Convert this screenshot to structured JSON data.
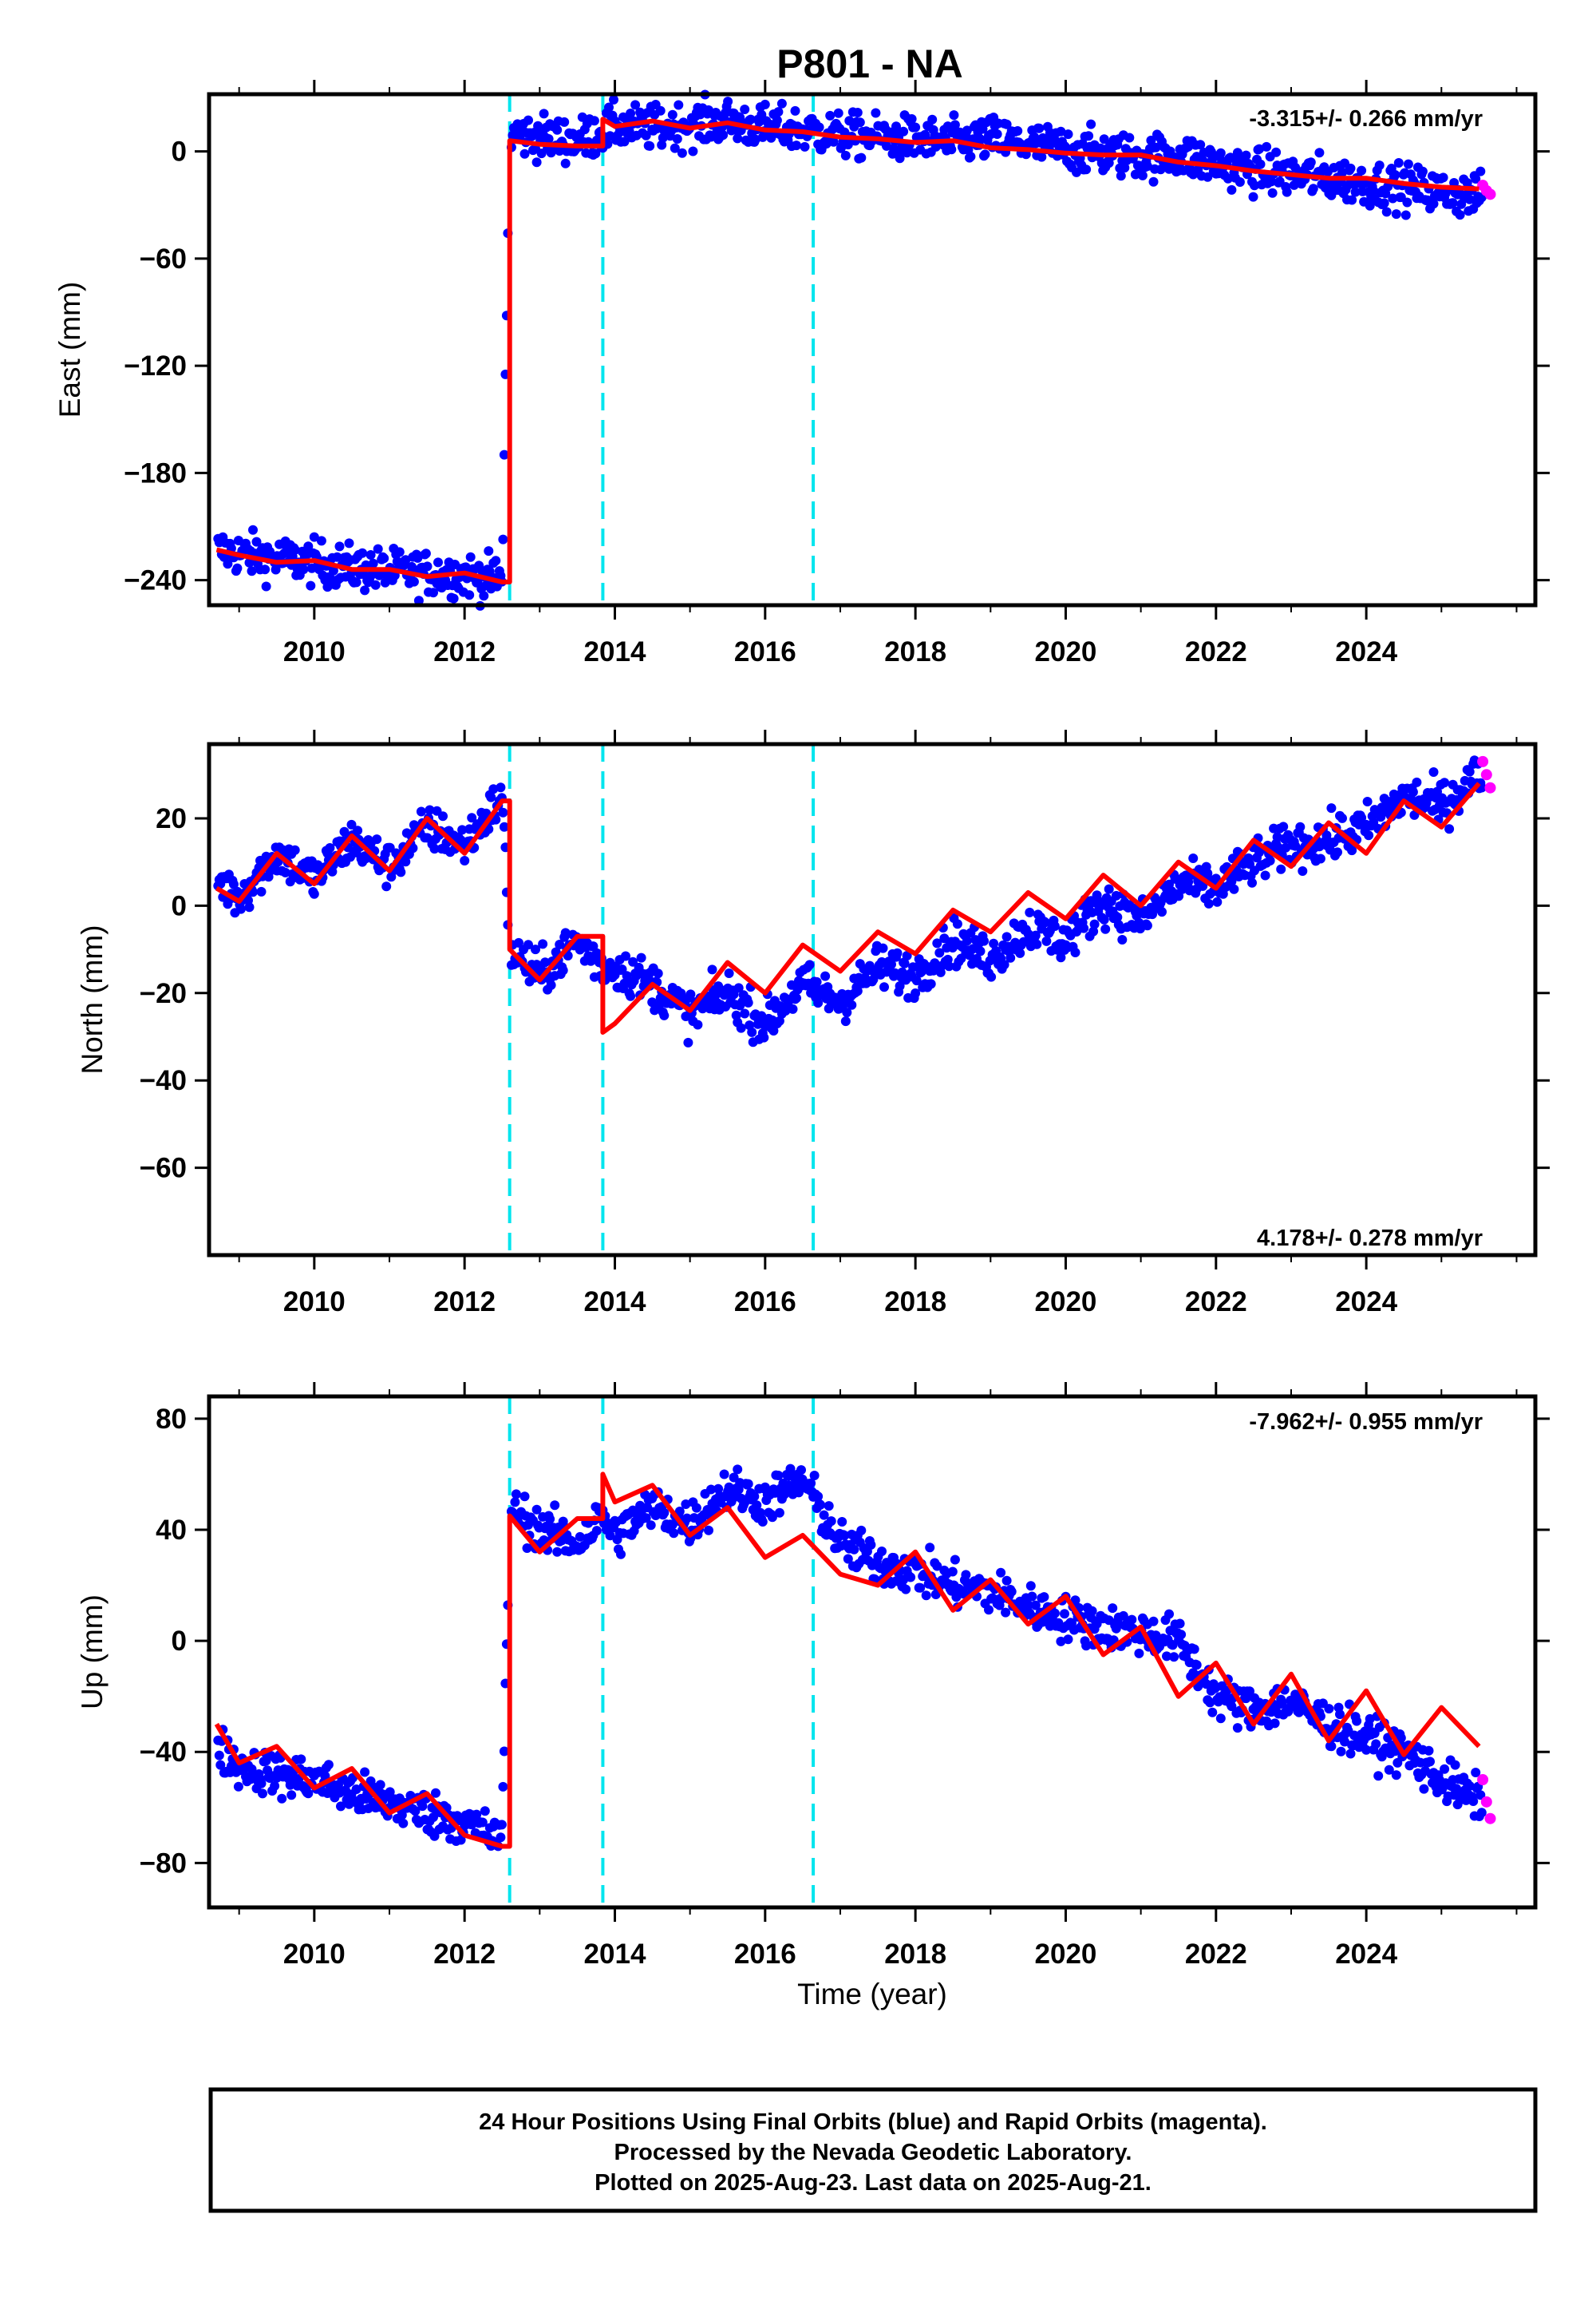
{
  "title": "P801 - NA",
  "colors": {
    "final": "#0000ff",
    "rapid": "#ff00ff",
    "model": "#ff0000",
    "offset": "#00e5ee",
    "frame": "#000000"
  },
  "xaxis": {
    "label": "Time (year)",
    "range": [
      2008.6,
      2026.25
    ],
    "ticks": [
      "2010",
      "2012",
      "2014",
      "2016",
      "2018",
      "2020",
      "2022",
      "2024"
    ]
  },
  "offset_epochs": [
    2012.6,
    2013.84,
    2016.64
  ],
  "chart_data": [
    {
      "type": "scatter",
      "name": "east",
      "ylabel": "East (mm)",
      "ylim": [
        -254,
        32
      ],
      "yticks": [
        "0",
        "−60",
        "−120",
        "−180",
        "−240"
      ],
      "rate": "-3.315+/- 0.266 mm/yr",
      "rate_position": "top-right",
      "x": [
        2008.7,
        2009.0,
        2009.5,
        2010.0,
        2010.5,
        2011.0,
        2011.5,
        2012.0,
        2012.5,
        2012.6,
        2013.0,
        2013.5,
        2013.84,
        2014.0,
        2014.5,
        2015.0,
        2015.5,
        2016.0,
        2016.5,
        2017.0,
        2017.5,
        2018.0,
        2018.5,
        2019.0,
        2019.5,
        2020.0,
        2020.5,
        2021.0,
        2021.5,
        2022.0,
        2022.5,
        2023.0,
        2023.5,
        2024.0,
        2024.5,
        2025.0,
        2025.5
      ],
      "final": [
        -223,
        -225,
        -228,
        -230,
        -233,
        -235,
        -236,
        -237,
        -240,
        10,
        8,
        6,
        11,
        14,
        13,
        15,
        17,
        13,
        12,
        9,
        8,
        7,
        5,
        7,
        4,
        1,
        -1,
        -3,
        -2,
        -7,
        -11,
        -13,
        -15,
        -18,
        -20,
        -23,
        -25
      ],
      "rapid": {
        "x": [
          2025.55,
          2025.6,
          2025.65
        ],
        "y": [
          -19,
          -22,
          -24
        ]
      },
      "model": [
        -223,
        -226,
        -230,
        -229,
        -234,
        -234,
        -238,
        -236,
        -241,
        6,
        4,
        3,
        18,
        14,
        17,
        13,
        16,
        12,
        11,
        8,
        7,
        5,
        6,
        2,
        1,
        -1,
        -2,
        -2,
        -6,
        -8,
        -11,
        -13,
        -15,
        -15,
        -18,
        -20,
        -21
      ]
    },
    {
      "type": "scatter",
      "name": "north",
      "ylabel": "North (mm)",
      "ylim": [
        -80,
        37
      ],
      "yticks": [
        "20",
        "0",
        "−20",
        "−40",
        "−60"
      ],
      "rate": "4.178+/- 0.278 mm/yr",
      "rate_position": "bottom-right",
      "x": [
        2008.7,
        2009.0,
        2009.5,
        2010.0,
        2010.5,
        2011.0,
        2011.5,
        2012.0,
        2012.5,
        2012.6,
        2013.0,
        2013.5,
        2013.84,
        2014.0,
        2014.5,
        2015.0,
        2015.5,
        2016.0,
        2016.5,
        2017.0,
        2017.5,
        2018.0,
        2018.5,
        2019.0,
        2019.5,
        2020.0,
        2020.5,
        2021.0,
        2021.5,
        2022.0,
        2022.5,
        2023.0,
        2023.5,
        2024.0,
        2024.5,
        2025.0,
        2025.5
      ],
      "final": [
        6,
        2,
        12,
        6,
        15,
        9,
        18,
        14,
        25,
        -10,
        -16,
        -8,
        -14,
        -14,
        -18,
        -25,
        -20,
        -27,
        -18,
        -22,
        -14,
        -16,
        -8,
        -12,
        -5,
        -8,
        1,
        -4,
        5,
        4,
        10,
        14,
        15,
        18,
        25,
        23,
        30
      ],
      "rapid": {
        "x": [
          2025.55,
          2025.6,
          2025.65
        ],
        "y": [
          33,
          30,
          27
        ]
      },
      "model": [
        4,
        1,
        12,
        5,
        16,
        8,
        20,
        12,
        24,
        -10,
        -17,
        -7,
        -29,
        -27,
        -18,
        -24,
        -13,
        -20,
        -9,
        -15,
        -6,
        -11,
        -1,
        -6,
        3,
        -3,
        7,
        0,
        10,
        4,
        15,
        9,
        19,
        12,
        24,
        18,
        28
      ]
    },
    {
      "type": "scatter",
      "name": "up",
      "ylabel": "Up (mm)",
      "ylim": [
        -96,
        88
      ],
      "yticks": [
        "80",
        "40",
        "0",
        "−40",
        "−80"
      ],
      "rate": "-7.962+/- 0.955 mm/yr",
      "rate_position": "top-right",
      "x": [
        2008.7,
        2009.0,
        2009.5,
        2010.0,
        2010.5,
        2011.0,
        2011.5,
        2012.0,
        2012.5,
        2012.6,
        2013.0,
        2013.5,
        2013.84,
        2014.0,
        2014.5,
        2015.0,
        2015.5,
        2016.0,
        2016.5,
        2017.0,
        2017.5,
        2018.0,
        2018.5,
        2019.0,
        2019.5,
        2020.0,
        2020.5,
        2021.0,
        2021.5,
        2022.0,
        2022.5,
        2023.0,
        2023.5,
        2024.0,
        2024.5,
        2025.0,
        2025.5
      ],
      "final": [
        -38,
        -45,
        -48,
        -50,
        -55,
        -58,
        -62,
        -65,
        -72,
        48,
        40,
        35,
        45,
        38,
        48,
        42,
        55,
        50,
        58,
        35,
        28,
        25,
        20,
        18,
        12,
        8,
        5,
        3,
        0,
        -20,
        -25,
        -22,
        -30,
        -35,
        -40,
        -50,
        -58
      ],
      "rapid": {
        "x": [
          2025.55,
          2025.6,
          2025.65
        ],
        "y": [
          -50,
          -58,
          -64
        ]
      },
      "model": [
        -30,
        -44,
        -38,
        -53,
        -46,
        -62,
        -55,
        -70,
        -74,
        45,
        32,
        44,
        60,
        50,
        56,
        38,
        48,
        30,
        38,
        24,
        20,
        32,
        11,
        22,
        6,
        16,
        -5,
        5,
        -20,
        -8,
        -30,
        -12,
        -36,
        -18,
        -41,
        -24,
        -38
      ]
    }
  ],
  "footer": {
    "line1": "24 Hour Positions Using Final Orbits (blue) and Rapid Orbits (magenta).",
    "line2": "Processed by the Nevada Geodetic Laboratory.",
    "line3": "Plotted on 2025-Aug-23. Last data on 2025-Aug-21."
  }
}
